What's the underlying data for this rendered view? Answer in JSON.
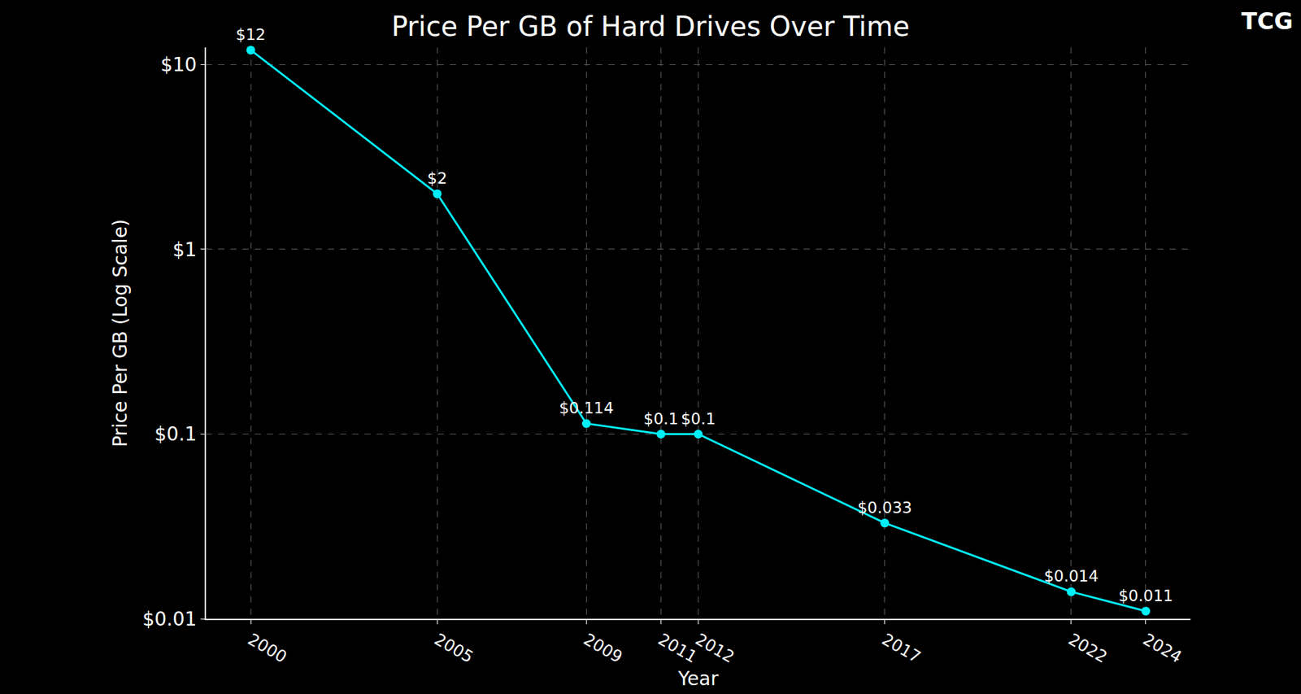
{
  "chart_data": {
    "type": "line",
    "title": "Price Per GB of Hard Drives Over Time",
    "x_label": "Year",
    "y_label": "Price Per GB (Log Scale)",
    "annotations": [
      "TCG"
    ],
    "x": [
      2000,
      2005,
      2009,
      2011,
      2012,
      2017,
      2022,
      2024
    ],
    "values": [
      12,
      2,
      0.114,
      0.1,
      0.1,
      0.033,
      0.014,
      0.011
    ],
    "value_labels": [
      "$12",
      "$2",
      "$0.114",
      "$0.1",
      "$0.1",
      "$0.033",
      "$0.014",
      "$0.011"
    ],
    "data_labels": true,
    "color": "#00f0f8",
    "marker": "circle",
    "line_style": "solid",
    "log": "y",
    "grid": true,
    "xlim": [
      1998.8,
      2025.2
    ],
    "xticks": [
      2000,
      2005,
      2009,
      2011,
      2012,
      2017,
      2022,
      2024
    ],
    "ylim": [
      0.01,
      12.4
    ],
    "yticks": [
      {
        "value": 0.01,
        "label": "$0.01"
      },
      {
        "value": 0.1,
        "label": "$0.1"
      },
      {
        "value": 1,
        "label": "$1"
      },
      {
        "value": 10,
        "label": "$10"
      }
    ]
  }
}
